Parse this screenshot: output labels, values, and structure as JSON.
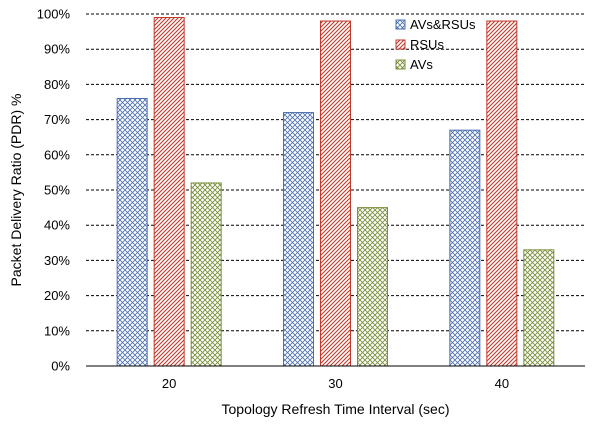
{
  "chart_data": {
    "type": "bar",
    "title": "",
    "xlabel": "Topology Refresh Time Interval (sec)",
    "ylabel": "Packet Delivery Ratio (PDR) %",
    "categories": [
      "20",
      "30",
      "40"
    ],
    "ylim": [
      0,
      100
    ],
    "yticks": [
      "0%",
      "10%",
      "20%",
      "30%",
      "40%",
      "50%",
      "60%",
      "70%",
      "80%",
      "90%",
      "100%"
    ],
    "grid": "horizontal-dashed",
    "legend_position": "top-right",
    "series": [
      {
        "name": "AVs&RSUs",
        "values": [
          76,
          72,
          67
        ],
        "color": "#4a6fb0",
        "pattern": "crosshatch"
      },
      {
        "name": "RSUs",
        "values": [
          99,
          98,
          98
        ],
        "color": "#c0392b",
        "pattern": "diagonal"
      },
      {
        "name": "AVs",
        "values": [
          52,
          45,
          33
        ],
        "color": "#7a8f3a",
        "pattern": "crosshatch"
      }
    ]
  }
}
